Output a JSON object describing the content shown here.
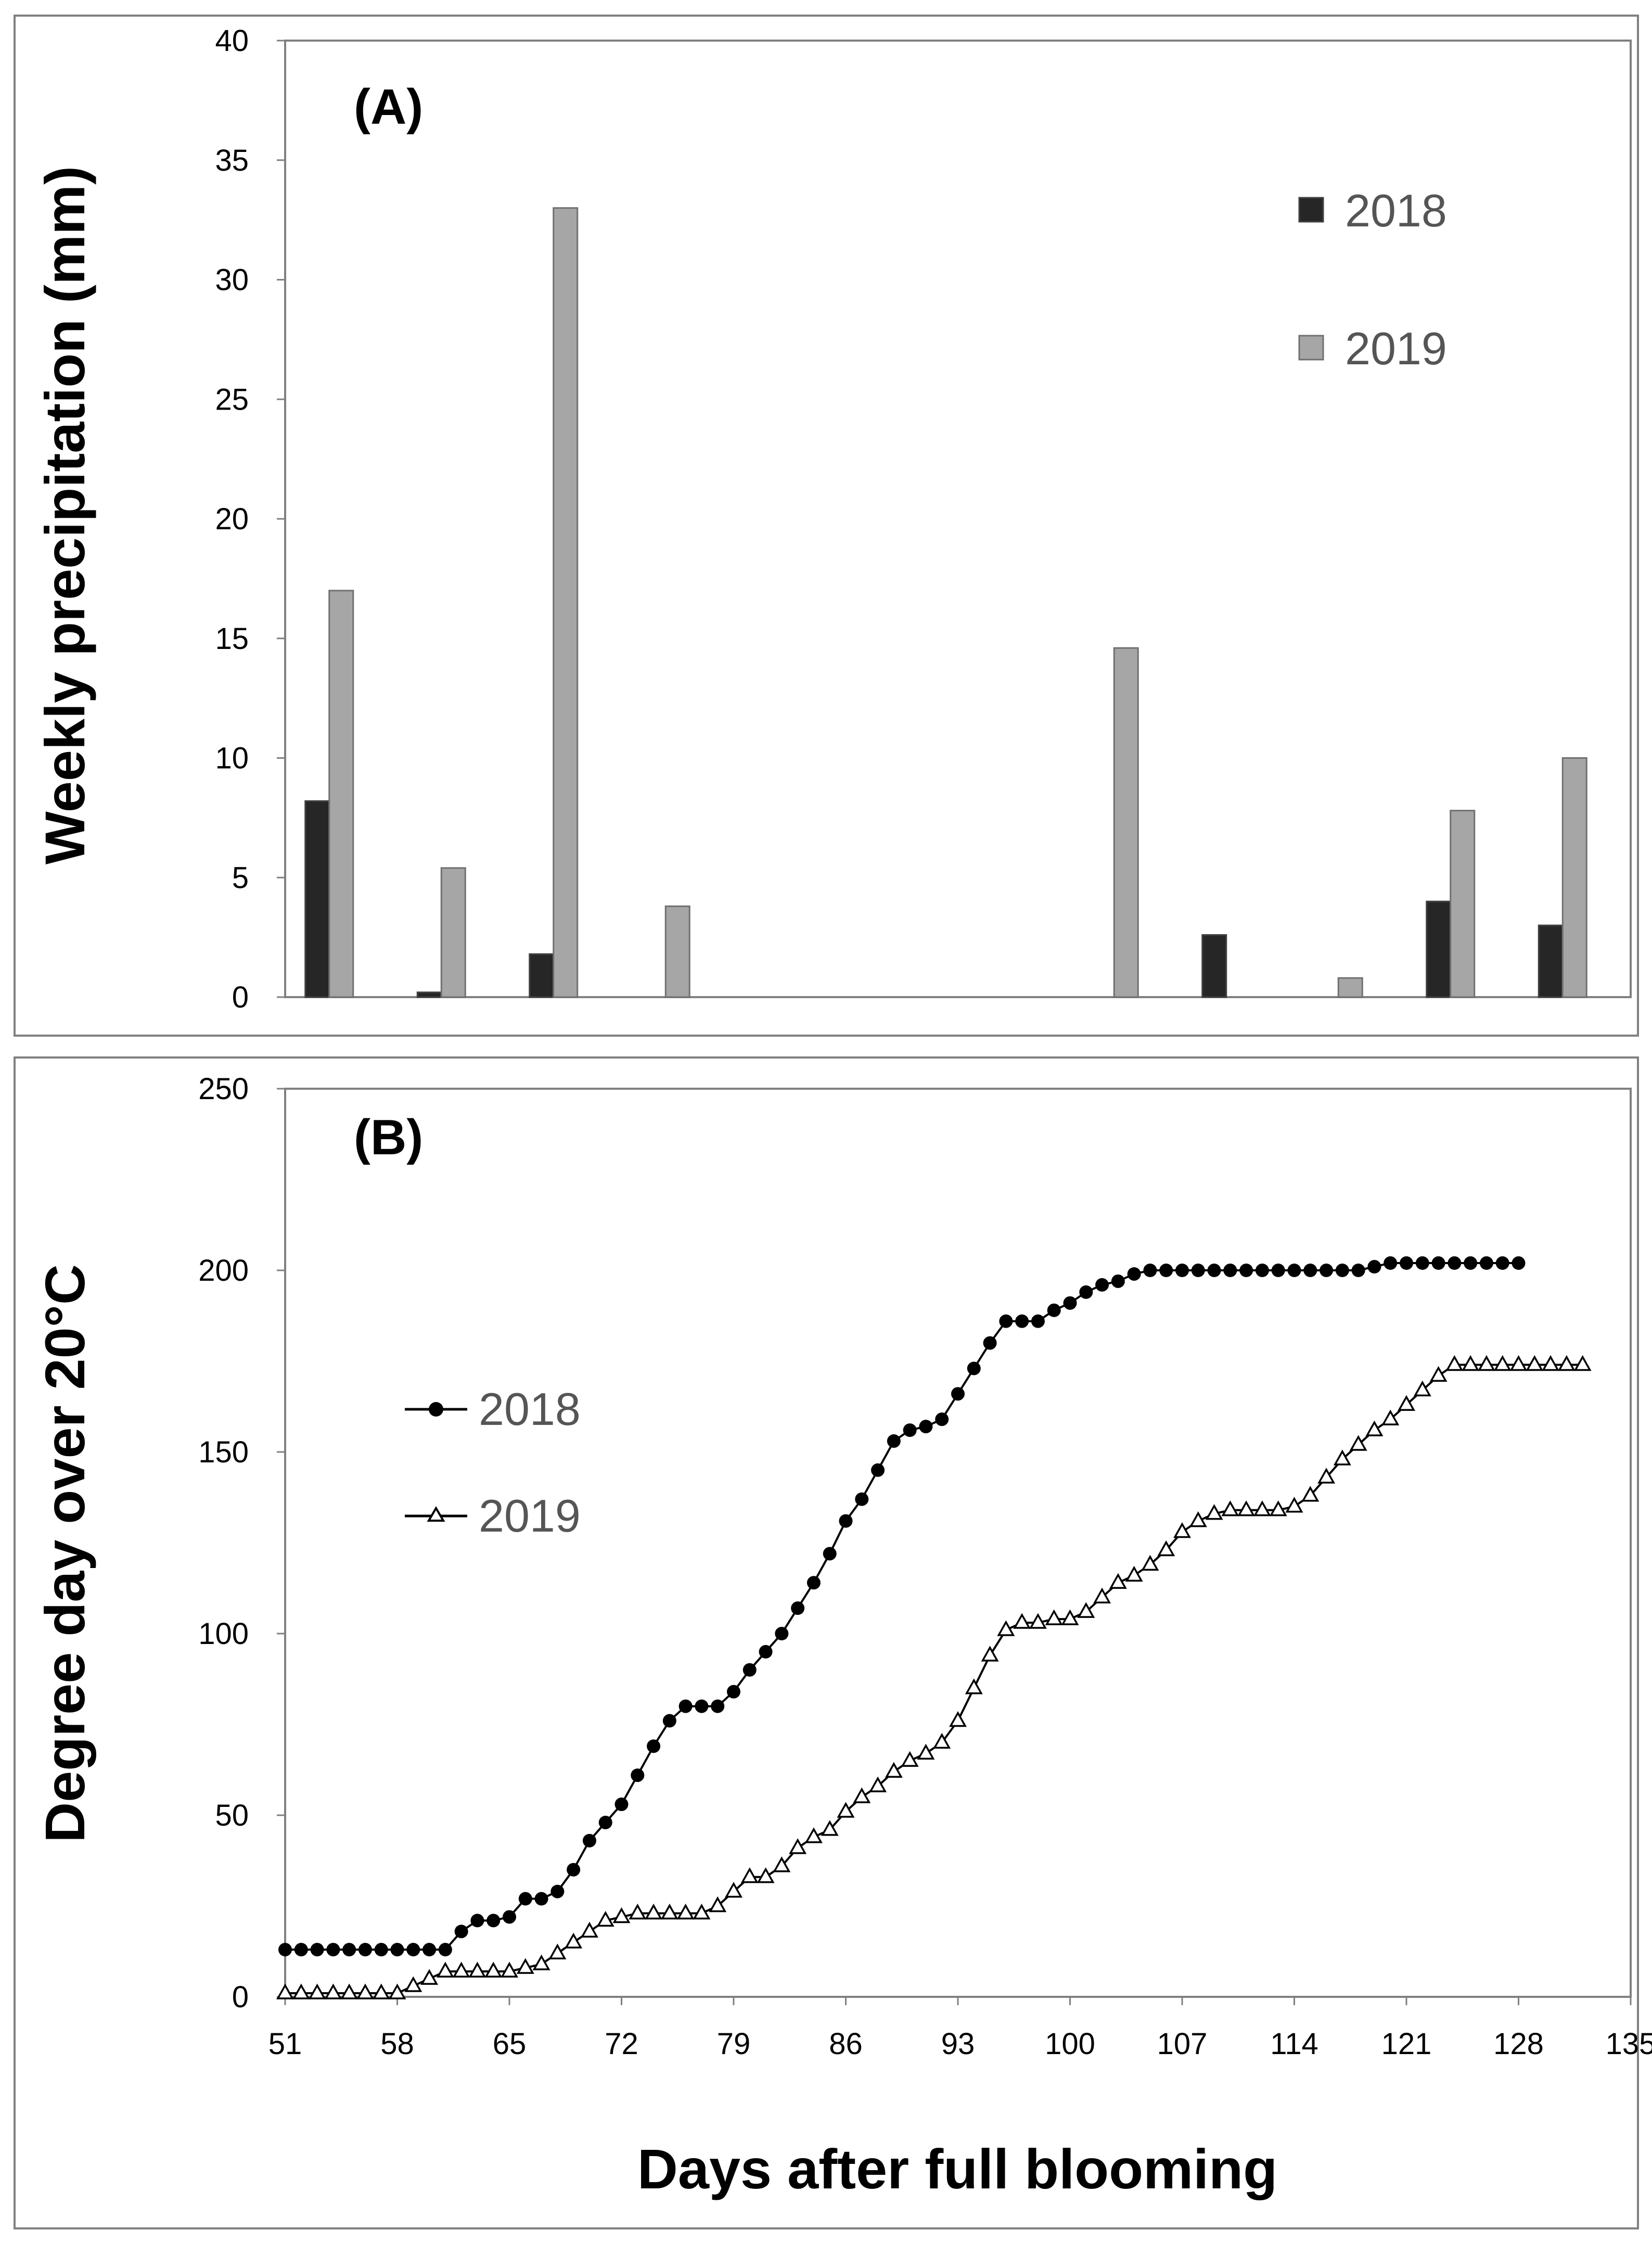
{
  "chart_data": [
    {
      "panel_label": "(A)",
      "type": "bar",
      "ylabel": "Weekly precipitation (mm)",
      "ylim": [
        0,
        40
      ],
      "y_ticks": [
        "0",
        "5",
        "10",
        "15",
        "20",
        "25",
        "30",
        "35",
        "40"
      ],
      "grid": false,
      "legend_position": "top-right",
      "colors": {
        "2018": "#262626",
        "2019": "#a6a6a6"
      },
      "series": [
        {
          "name": "2018",
          "values": [
            8.2,
            0.2,
            1.8,
            0,
            0,
            0,
            0,
            0,
            2.6,
            0,
            4.0,
            3.0
          ]
        },
        {
          "name": "2019",
          "values": [
            17.0,
            5.4,
            33.0,
            3.8,
            0,
            0,
            0,
            14.6,
            0,
            0.8,
            7.8,
            10.0
          ]
        }
      ]
    },
    {
      "panel_label": "(B)",
      "type": "line",
      "ylabel": "Degree day over 20°C",
      "xlabel": "Days after full blooming",
      "xlim": [
        51,
        135
      ],
      "ylim": [
        0,
        250
      ],
      "x_ticks": [
        "51",
        "58",
        "65",
        "72",
        "79",
        "86",
        "93",
        "100",
        "107",
        "114",
        "121",
        "128",
        "135"
      ],
      "y_ticks": [
        "0",
        "50",
        "100",
        "150",
        "200",
        "250"
      ],
      "grid": false,
      "legend_position": "middle-left",
      "series": [
        {
          "name": "2018",
          "marker": "filled-circle",
          "x": [
            51,
            52,
            53,
            54,
            55,
            56,
            57,
            58,
            59,
            60,
            61,
            62,
            63,
            64,
            65,
            66,
            67,
            68,
            69,
            70,
            71,
            72,
            73,
            74,
            75,
            76,
            77,
            78,
            79,
            80,
            81,
            82,
            83,
            84,
            85,
            86,
            87,
            88,
            89,
            90,
            91,
            92,
            93,
            94,
            95,
            96,
            97,
            98,
            99,
            100,
            101,
            102,
            103,
            104,
            105,
            106,
            107,
            108,
            109,
            110,
            111,
            112,
            113,
            114,
            115,
            116,
            117,
            118,
            119,
            120,
            121,
            122,
            123,
            124,
            125,
            126,
            127,
            128
          ],
          "y": [
            13,
            13,
            13,
            13,
            13,
            13,
            13,
            13,
            13,
            13,
            13,
            18,
            21,
            21,
            22,
            27,
            27,
            29,
            35,
            43,
            48,
            53,
            61,
            69,
            76,
            80,
            80,
            80,
            84,
            90,
            95,
            100,
            107,
            114,
            122,
            131,
            137,
            145,
            153,
            156,
            157,
            159,
            166,
            173,
            180,
            186,
            186,
            186,
            189,
            191,
            194,
            196,
            197,
            199,
            200,
            200,
            200,
            200,
            200,
            200,
            200,
            200,
            200,
            200,
            200,
            200,
            200,
            200,
            201,
            202,
            202,
            202,
            202,
            202,
            202,
            202,
            202,
            202
          ]
        },
        {
          "name": "2019",
          "marker": "open-triangle",
          "x": [
            51,
            52,
            53,
            54,
            55,
            56,
            57,
            58,
            59,
            60,
            61,
            62,
            63,
            64,
            65,
            66,
            67,
            68,
            69,
            70,
            71,
            72,
            73,
            74,
            75,
            76,
            77,
            78,
            79,
            80,
            81,
            82,
            83,
            84,
            85,
            86,
            87,
            88,
            89,
            90,
            91,
            92,
            93,
            94,
            95,
            96,
            97,
            98,
            99,
            100,
            101,
            102,
            103,
            104,
            105,
            106,
            107,
            108,
            109,
            110,
            111,
            112,
            113,
            114,
            115,
            116,
            117,
            118,
            119,
            120,
            121,
            122,
            123,
            124,
            125,
            126,
            127,
            128,
            129,
            130,
            131,
            132
          ],
          "y": [
            1,
            1,
            1,
            1,
            1,
            1,
            1,
            1,
            3,
            5,
            7,
            7,
            7,
            7,
            7,
            8,
            9,
            12,
            15,
            18,
            21,
            22,
            23,
            23,
            23,
            23,
            23,
            25,
            29,
            33,
            33,
            36,
            41,
            44,
            46,
            51,
            55,
            58,
            62,
            65,
            67,
            70,
            76,
            85,
            94,
            101,
            103,
            103,
            104,
            104,
            106,
            110,
            114,
            116,
            119,
            123,
            128,
            131,
            133,
            134,
            134,
            134,
            134,
            135,
            138,
            143,
            148,
            152,
            156,
            159,
            163,
            167,
            171,
            174,
            174,
            174,
            174,
            174,
            174,
            174,
            174,
            174
          ]
        }
      ]
    }
  ]
}
